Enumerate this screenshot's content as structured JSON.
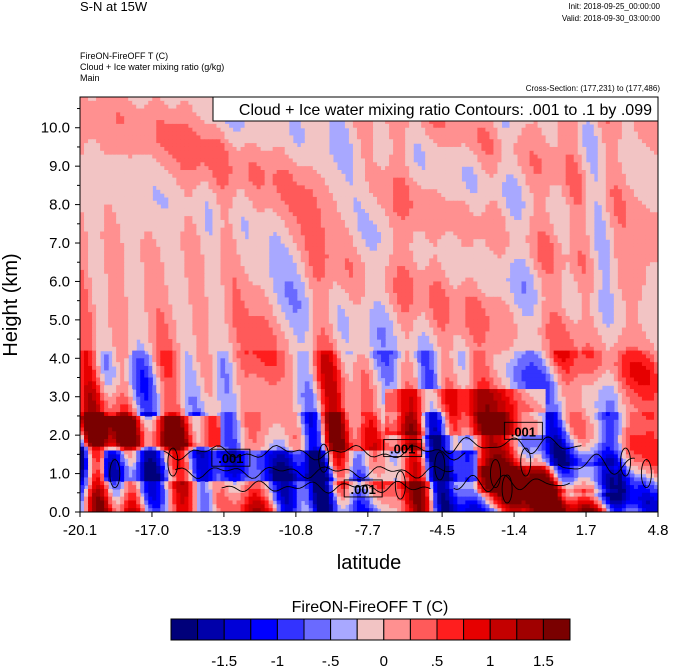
{
  "title": "S-N at 15W",
  "init_text": "Init: 2018-09-25_00:00:00",
  "valid_text": "Valid: 2018-09-30_03:00:00",
  "field_line1": "FireON-FireOFF T   (C)",
  "field_line2": "Cloud + Ice water mixing ratio   (g/kg)",
  "field_line3": "Main",
  "cross_section_text": "Cross-Section: (177,231) to (177,486)",
  "chart_data": {
    "type": "heatmap",
    "title": "S-N at 15W",
    "shaded_field": "FireON-FireOFF T (C)",
    "contour_field": "Cloud + Ice water mixing ratio (g/kg)",
    "contour_info": "Cloud + Ice water mixing ratio Contours: .001 to .1 by .099",
    "xlabel": "latitude",
    "ylabel": "Height (km)",
    "xlim": [
      -20.1,
      4.8
    ],
    "ylim": [
      0,
      10.8
    ],
    "xticks": [
      -20.1,
      -17.0,
      -13.9,
      -10.8,
      -7.7,
      -4.5,
      -1.4,
      1.7,
      4.8
    ],
    "xtick_labels": [
      "-20.1",
      "-17.0",
      "-13.9",
      "-10.8",
      "-7.7",
      "-4.5",
      "-1.4",
      "1.7",
      "4.8"
    ],
    "yticks": [
      0,
      1,
      2,
      3,
      4,
      5,
      6,
      7,
      8,
      9,
      10
    ],
    "ytick_labels": [
      "0.0",
      "1.0",
      "2.0",
      "3.0",
      "4.0",
      "5.0",
      "6.0",
      "7.0",
      "8.0",
      "9.0",
      "10.0"
    ],
    "contour_labels": [
      {
        "text": ".001",
        "lat": -13.6,
        "height": 1.4
      },
      {
        "text": ".001",
        "lat": -6.2,
        "height": 1.65
      },
      {
        "text": ".001",
        "lat": -1.0,
        "height": 2.1
      },
      {
        "text": ".001",
        "lat": -7.9,
        "height": 0.6
      }
    ],
    "colorbar": {
      "title": "FireON-FireOFF T  (C)",
      "levels": [
        -1.75,
        -1.5,
        -1.25,
        -1,
        -0.75,
        -0.5,
        -0.25,
        0,
        0.25,
        0.5,
        0.75,
        1,
        1.25,
        1.5,
        1.75
      ],
      "tick_labels": [
        "-1.5",
        "-1",
        "-.5",
        "0",
        ".5",
        "1",
        "1.5"
      ],
      "colors": [
        "#00007a",
        "#0000aa",
        "#0000d8",
        "#0000ff",
        "#3333ff",
        "#6a6aff",
        "#a8a8ff",
        "#f2c4c4",
        "#ff9090",
        "#ff5a5a",
        "#ff1e1e",
        "#e60000",
        "#c40000",
        "#a00000",
        "#7a0000"
      ]
    }
  }
}
